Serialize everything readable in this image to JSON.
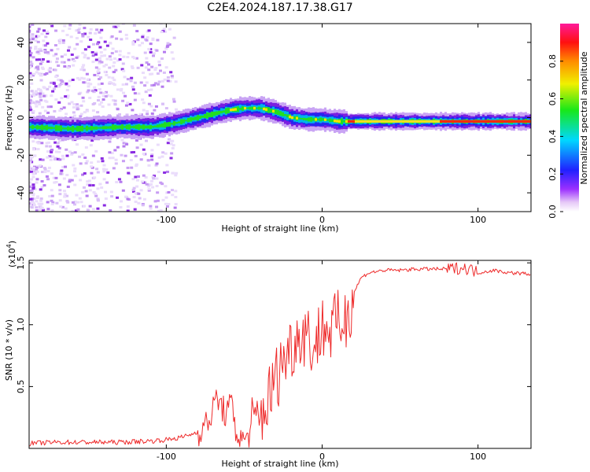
{
  "title": "C2E4.2024.187.17.38.G17",
  "chart_data": [
    {
      "type": "heatmap",
      "xlabel": "Height of straight line (km)",
      "ylabel": "Frequency (Hz)",
      "xlim": [
        -188,
        134
      ],
      "ylim": [
        -50,
        50
      ],
      "xticks": [
        -100,
        0,
        100
      ],
      "xtick_labels": [
        "-100",
        "0",
        "100"
      ],
      "yticks": [
        -40,
        -20,
        0,
        20,
        40
      ],
      "ytick_labels": [
        "-40",
        "-20",
        "0",
        "20",
        "40"
      ],
      "ridge": {
        "x": [
          -188,
          -160,
          -130,
          -110,
          -95,
          -80,
          -70,
          -60,
          -50,
          -40,
          -30,
          -20,
          -10,
          0,
          10,
          20,
          40,
          60,
          80,
          100,
          120,
          134
        ],
        "y": [
          -5,
          -6,
          -5,
          -5,
          -3,
          0,
          2,
          4,
          5,
          5,
          3,
          0,
          -1,
          -1,
          -2,
          -2,
          -2,
          -2,
          -2,
          -2,
          -2,
          -2
        ]
      },
      "colorbar": {
        "label": "Normalized spectral amplitude",
        "range": [
          0,
          1
        ],
        "ticks": [
          0.0,
          0.2,
          0.4,
          0.6,
          0.8
        ],
        "tick_labels": [
          "0.0",
          "0.2",
          "0.4",
          "0.6",
          "0.8"
        ]
      },
      "grid": false
    },
    {
      "type": "line",
      "xlabel": "Height of straight line (km)",
      "ylabel": "SNR (10 * v/v)",
      "multiplier_label": "(x10",
      "multiplier_exp": "4",
      "multiplier_close": ")",
      "xlim": [
        -188,
        134
      ],
      "ylim": [
        0,
        1.52
      ],
      "xticks": [
        -100,
        0,
        100
      ],
      "xtick_labels": [
        "-100",
        "0",
        "100"
      ],
      "yticks": [
        0.5,
        1.0,
        1.5
      ],
      "ytick_labels": [
        "0.5",
        "1.0",
        "1.5"
      ],
      "series": [
        {
          "color": "#ee2a2a",
          "x": [
            -188,
            -170,
            -150,
            -130,
            -110,
            -100,
            -90,
            -80,
            -75,
            -70,
            -68,
            -65,
            -62,
            -58,
            -55,
            -52,
            -48,
            -45,
            -40,
            -35,
            -30,
            -25,
            -20,
            -15,
            -10,
            -5,
            0,
            5,
            10,
            15,
            20,
            25,
            30,
            40,
            50,
            60,
            70,
            80,
            90,
            95,
            100,
            110,
            120,
            134
          ],
          "y": [
            0.04,
            0.05,
            0.05,
            0.05,
            0.06,
            0.07,
            0.09,
            0.13,
            0.18,
            0.3,
            0.42,
            0.35,
            0.28,
            0.35,
            0.12,
            0.05,
            0.1,
            0.16,
            0.25,
            0.38,
            0.55,
            0.72,
            0.82,
            0.92,
            0.95,
            0.8,
            1.0,
            0.95,
            1.0,
            1.05,
            1.25,
            1.38,
            1.42,
            1.44,
            1.44,
            1.45,
            1.45,
            1.45,
            1.46,
            1.45,
            1.42,
            1.44,
            1.42,
            1.41
          ]
        }
      ],
      "grid": false
    }
  ]
}
